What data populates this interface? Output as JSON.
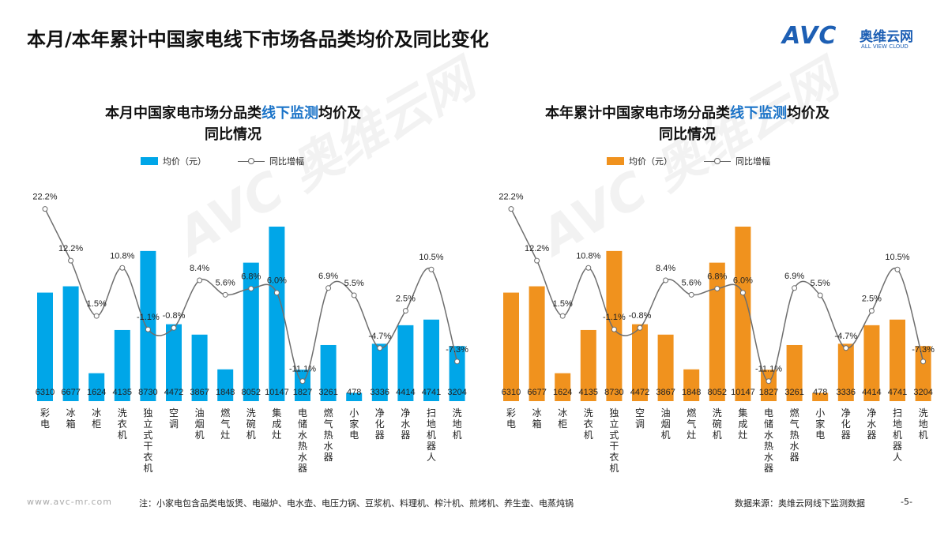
{
  "header": {
    "title": "本月/本年累计中国家电线下市场各品类均价及同比变化",
    "logo_text": "AVC",
    "logo_cn": "奥维云网",
    "logo_en": "ALL VIEW CLOUD"
  },
  "watermark": "AVC 奥维云网",
  "chart_data": [
    {
      "type": "bar+line",
      "title_parts": [
        "本月中国家电市场分品类",
        "线下监测",
        "均价及"
      ],
      "title_line2": "同比情况",
      "legend": [
        "均价（元）",
        "同比增幅"
      ],
      "bar_color": "#00a6e8",
      "categories": [
        "彩电",
        "冰箱",
        "冰柜",
        "洗衣机",
        "独立式干衣机",
        "空调",
        "油烟机",
        "燃气灶",
        "洗碗机",
        "集成灶",
        "电储水热水器",
        "燃气热水器",
        "小家电",
        "净化器",
        "净水器",
        "扫地机器人",
        "洗地机"
      ],
      "series": [
        {
          "name": "均价（元）",
          "type": "bar",
          "values": [
            6310,
            6677,
            1624,
            4135,
            8730,
            4472,
            3867,
            1848,
            8052,
            10147,
            1827,
            3261,
            478,
            3336,
            4414,
            4741,
            3204
          ]
        },
        {
          "name": "同比增幅",
          "type": "line",
          "unit": "%",
          "values": [
            22.2,
            12.2,
            1.5,
            10.8,
            -1.1,
            -0.8,
            8.4,
            5.6,
            6.8,
            6.0,
            -11.1,
            6.9,
            5.5,
            -4.7,
            2.5,
            10.5,
            -7.3
          ]
        }
      ]
    },
    {
      "type": "bar+line",
      "title_parts": [
        "本年累计中国家电市场分品类",
        "线下监测",
        "均价及"
      ],
      "title_line2": "同比情况",
      "legend": [
        "均价（元）",
        "同比增幅"
      ],
      "bar_color": "#f0921e",
      "categories": [
        "彩电",
        "冰箱",
        "冰柜",
        "洗衣机",
        "独立式干衣机",
        "空调",
        "油烟机",
        "燃气灶",
        "洗碗机",
        "集成灶",
        "电储水热水器",
        "燃气热水器",
        "小家电",
        "净化器",
        "净水器",
        "扫地机器人",
        "洗地机"
      ],
      "series": [
        {
          "name": "均价（元）",
          "type": "bar",
          "values": [
            6310,
            6677,
            1624,
            4135,
            8730,
            4472,
            3867,
            1848,
            8052,
            10147,
            1827,
            3261,
            478,
            3336,
            4414,
            4741,
            3204
          ]
        },
        {
          "name": "同比增幅",
          "type": "line",
          "unit": "%",
          "values": [
            22.2,
            12.2,
            1.5,
            10.8,
            -1.1,
            -0.8,
            8.4,
            5.6,
            6.8,
            6.0,
            -11.1,
            6.9,
            5.5,
            -4.7,
            2.5,
            10.5,
            -7.3
          ]
        }
      ]
    }
  ],
  "footer": {
    "url": "www.avc-mr.com",
    "note": "注：小家电包含品类电饭煲、电磁炉、电水壶、电压力锅、豆浆机、料理机、榨汁机、煎烤机、养生壶、电蒸炖锅",
    "source": "数据来源：奥维云网线下监测数据",
    "page": "-5-"
  }
}
